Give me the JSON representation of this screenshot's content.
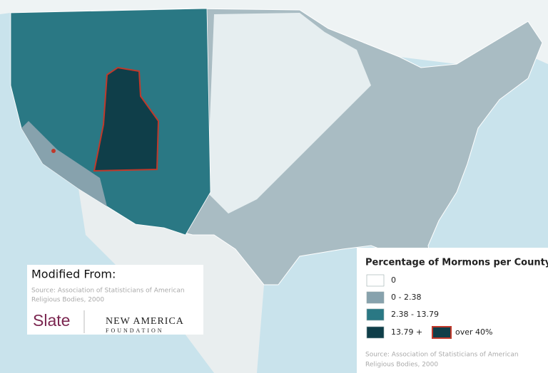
{
  "legend": {
    "title": "Percentage of Mormons per County",
    "items": [
      {
        "label": "0",
        "color": "#ffffff"
      },
      {
        "label": "0 - 2.38",
        "color": "#87a2ad"
      },
      {
        "label": "2.38 - 13.79",
        "color": "#2a7884"
      },
      {
        "label": "13.79 +",
        "color": "#0f3e49"
      }
    ],
    "highlight": {
      "label": "over 40%",
      "color": "#0f3e49",
      "border": "#c0392b"
    },
    "source": [
      "Source: Association of Statisticians of American",
      "Religious Bodies, 2000"
    ]
  },
  "credit": {
    "heading": "Modified From:",
    "source": [
      "Source: Association of Statisticians of American",
      "Religious Bodies, 2000"
    ],
    "logos": {
      "slate": "Slate",
      "new_america": "NEW AMERICA",
      "foundation": "FOUNDATION"
    }
  }
}
